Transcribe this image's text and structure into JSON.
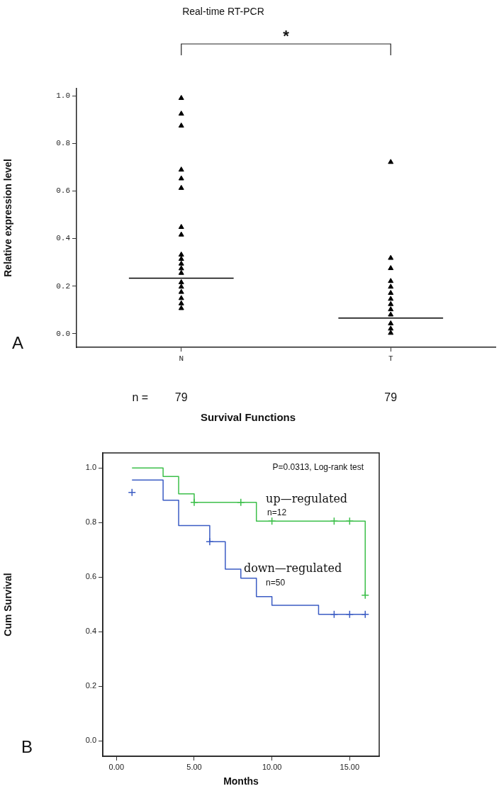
{
  "chart_data": [
    {
      "type": "scatter",
      "title": "Real-time RT-PCR",
      "ylabel": "Relative expression level",
      "categories": [
        "N",
        "T"
      ],
      "ylim": [
        -0.057,
        1.03
      ],
      "yticks": [
        {
          "value": 0,
          "label": "0.0"
        },
        {
          "value": 0.2,
          "label": "0.2"
        },
        {
          "value": 0.4,
          "label": "0.4"
        },
        {
          "value": 0.6,
          "label": "0.6"
        },
        {
          "value": 0.8,
          "label": "0.8"
        },
        {
          "value": 1,
          "label": "1.0"
        }
      ],
      "grid": false,
      "legend": false,
      "marker": "triangle",
      "series": [
        {
          "color": "#000000",
          "x": [
            "N",
            "N",
            "N",
            "N",
            "N",
            "N",
            "N",
            "N",
            "N",
            "N",
            "N",
            "N",
            "N",
            "N",
            "N",
            "N",
            "N",
            "N",
            "N"
          ],
          "values": [
            0.99,
            0.924,
            0.874,
            0.689,
            0.652,
            0.612,
            0.448,
            0.416,
            0.332,
            0.314,
            0.294,
            0.274,
            0.255,
            0.216,
            0.197,
            0.175,
            0.149,
            0.127,
            0.107
          ]
        },
        {
          "color": "#000000",
          "x": [
            "T",
            "T",
            "T",
            "T",
            "T",
            "T",
            "T",
            "T",
            "T",
            "T",
            "T",
            "T",
            "T"
          ],
          "values": [
            0.721,
            0.318,
            0.275,
            0.221,
            0.197,
            0.171,
            0.146,
            0.124,
            0.102,
            0.08,
            0.043,
            0.021,
            0.003
          ]
        }
      ],
      "ref_lines": [
        {
          "axis": "y",
          "value": 0.233,
          "color": "#000000"
        },
        {
          "axis": "y",
          "value": 0.066,
          "color": "#000000"
        }
      ],
      "annotations": [
        "*",
        "n =",
        "79",
        "79",
        "A"
      ]
    },
    {
      "type": "step",
      "title": "Survival Functions",
      "xlabel": "Months",
      "ylabel": "Cum Survival",
      "xlim": [
        -0.88,
        16.9
      ],
      "xticks": [
        {
          "value": 0,
          "label": "0.00"
        },
        {
          "value": 5,
          "label": "5.00"
        },
        {
          "value": 10,
          "label": "10.00"
        },
        {
          "value": 15,
          "label": "15.00"
        }
      ],
      "ylim": [
        -0.056,
        1.055
      ],
      "yticks": [
        {
          "value": 0,
          "label": "0.0"
        },
        {
          "value": 0.2,
          "label": "0.2"
        },
        {
          "value": 0.4,
          "label": "0.4"
        },
        {
          "value": 0.6,
          "label": "0.6"
        },
        {
          "value": 0.8,
          "label": "0.8"
        },
        {
          "value": 1,
          "label": "1.0"
        }
      ],
      "grid": false,
      "legend": false,
      "marker": "none",
      "series": [
        {
          "name": "up—regulated",
          "color": "#3cbf4a",
          "x": [
            1,
            3,
            4,
            5,
            9,
            16,
            16
          ],
          "values": [
            1,
            0.969,
            0.905,
            0.874,
            0.805,
            0.805,
            0.534
          ]
        },
        {
          "name": "down—regulated",
          "color": "#3b5cc4",
          "x": [
            1,
            3,
            4,
            6,
            7,
            8,
            9,
            10,
            13,
            16
          ],
          "values": [
            0.956,
            0.882,
            0.789,
            0.73,
            0.629,
            0.596,
            0.529,
            0.497,
            0.464,
            0.464
          ]
        },
        {
          "type": "scatter",
          "marker": "cross",
          "color": "#3cbf4a",
          "x": [
            5,
            8,
            10,
            14,
            15,
            16
          ],
          "values": [
            0.874,
            0.874,
            0.805,
            0.805,
            0.805,
            0.534
          ]
        },
        {
          "type": "scatter",
          "marker": "cross",
          "color": "#3b5cc4",
          "x": [
            1,
            6,
            14,
            15,
            16
          ],
          "values": [
            0.91,
            0.73,
            0.464,
            0.464,
            0.464
          ]
        }
      ],
      "annotations": [
        "P=0.0313, Log-rank test",
        "n=12",
        "n=50",
        "B"
      ]
    }
  ]
}
